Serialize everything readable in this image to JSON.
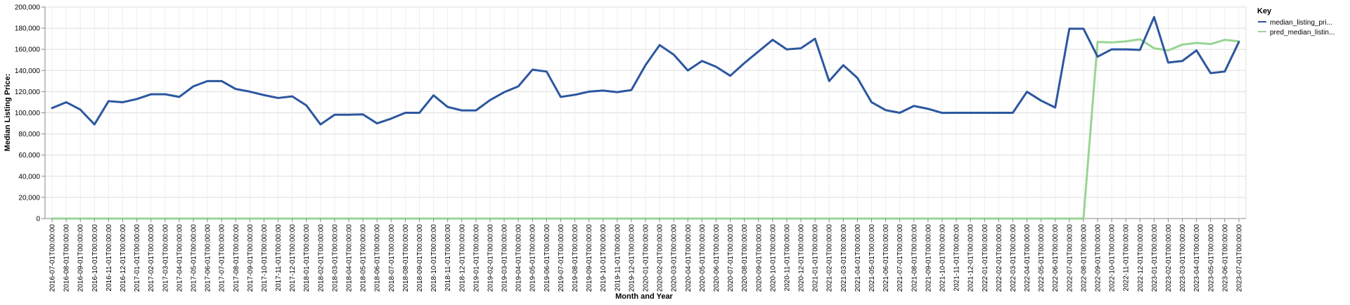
{
  "chart_data": {
    "type": "line",
    "xlabel": "Month and Year",
    "ylabel": "Median Listing Price:",
    "ylim": [
      0,
      200000
    ],
    "yticks": [
      0,
      20000,
      40000,
      60000,
      80000,
      100000,
      120000,
      140000,
      160000,
      180000,
      200000
    ],
    "ytick_labels": [
      "0",
      "20,000",
      "40,000",
      "60,000",
      "80,000",
      "100,000",
      "120,000",
      "140,000",
      "160,000",
      "180,000",
      "200,000"
    ],
    "grid": true,
    "legend_title": "Key",
    "legend_position": "right",
    "categories": [
      "2016-07-01T00:00:00",
      "2016-08-01T00:00:00",
      "2016-09-01T00:00:00",
      "2016-10-01T00:00:00",
      "2016-11-01T00:00:00",
      "2016-12-01T00:00:00",
      "2017-01-01T00:00:00",
      "2017-02-01T00:00:00",
      "2017-03-01T00:00:00",
      "2017-04-01T00:00:00",
      "2017-05-01T00:00:00",
      "2017-06-01T00:00:00",
      "2017-07-01T00:00:00",
      "2017-08-01T00:00:00",
      "2017-09-01T00:00:00",
      "2017-10-01T00:00:00",
      "2017-11-01T00:00:00",
      "2017-12-01T00:00:00",
      "2018-01-01T00:00:00",
      "2018-02-01T00:00:00",
      "2018-03-01T00:00:00",
      "2018-04-01T00:00:00",
      "2018-05-01T00:00:00",
      "2018-06-01T00:00:00",
      "2018-07-01T00:00:00",
      "2018-08-01T00:00:00",
      "2018-09-01T00:00:00",
      "2018-10-01T00:00:00",
      "2018-11-01T00:00:00",
      "2018-12-01T00:00:00",
      "2019-01-01T00:00:00",
      "2019-02-01T00:00:00",
      "2019-03-01T00:00:00",
      "2019-04-01T00:00:00",
      "2019-05-01T00:00:00",
      "2019-06-01T00:00:00",
      "2019-07-01T00:00:00",
      "2019-08-01T00:00:00",
      "2019-09-01T00:00:00",
      "2019-10-01T00:00:00",
      "2019-11-01T00:00:00",
      "2019-12-01T00:00:00",
      "2020-01-01T00:00:00",
      "2020-02-01T00:00:00",
      "2020-03-01T00:00:00",
      "2020-04-01T00:00:00",
      "2020-05-01T00:00:00",
      "2020-06-01T00:00:00",
      "2020-07-01T00:00:00",
      "2020-08-01T00:00:00",
      "2020-09-01T00:00:00",
      "2020-10-01T00:00:00",
      "2020-11-01T00:00:00",
      "2020-12-01T00:00:00",
      "2021-01-01T00:00:00",
      "2021-02-01T00:00:00",
      "2021-03-01T00:00:00",
      "2021-04-01T00:00:00",
      "2021-05-01T00:00:00",
      "2021-06-01T00:00:00",
      "2021-07-01T00:00:00",
      "2021-08-01T00:00:00",
      "2021-09-01T00:00:00",
      "2021-10-01T00:00:00",
      "2021-11-01T00:00:00",
      "2021-12-01T00:00:00",
      "2022-01-01T00:00:00",
      "2022-02-01T00:00:00",
      "2022-03-01T00:00:00",
      "2022-04-01T00:00:00",
      "2022-05-01T00:00:00",
      "2022-06-01T00:00:00",
      "2022-07-01T00:00:00",
      "2022-08-01T00:00:00",
      "2022-09-01T00:00:00",
      "2022-10-01T00:00:00",
      "2022-11-01T00:00:00",
      "2022-12-01T00:00:00",
      "2023-01-01T00:00:00",
      "2023-02-01T00:00:00",
      "2023-03-01T00:00:00",
      "2023-04-01T00:00:00",
      "2023-05-01T00:00:00",
      "2023-06-01T00:00:00",
      "2023-07-01T00:00:00"
    ],
    "series": [
      {
        "name": "median_listing_pri...",
        "color": "#2c579f",
        "values": [
          104500,
          110000,
          103000,
          89000,
          111000,
          110000,
          113000,
          117500,
          117500,
          115000,
          125000,
          130000,
          130000,
          122500,
          120000,
          116750,
          114000,
          115500,
          107000,
          89000,
          98200,
          98200,
          98500,
          90000,
          94500,
          100000,
          100000,
          116500,
          105500,
          102250,
          102250,
          112000,
          119500,
          125000,
          140750,
          139000,
          115000,
          117000,
          120000,
          121000,
          119500,
          121500,
          145000,
          164000,
          155000,
          140000,
          149000,
          143500,
          135000,
          147000,
          158000,
          169000,
          160000,
          161000,
          170000,
          130000,
          145000,
          133000,
          110000,
          102500,
          100000,
          106500,
          103750,
          99900,
          100000,
          100000,
          100000,
          100000,
          100000,
          119900,
          111500,
          105000,
          179500,
          179500,
          153000,
          160000,
          160000,
          159500,
          190500,
          147500,
          149000,
          159000,
          137500,
          139000,
          167000
        ]
      },
      {
        "name": "pred_median_listin...",
        "color": "#98d594",
        "values": [
          0,
          0,
          0,
          0,
          0,
          0,
          0,
          0,
          0,
          0,
          0,
          0,
          0,
          0,
          0,
          0,
          0,
          0,
          0,
          0,
          0,
          0,
          0,
          0,
          0,
          0,
          0,
          0,
          0,
          0,
          0,
          0,
          0,
          0,
          0,
          0,
          0,
          0,
          0,
          0,
          0,
          0,
          0,
          0,
          0,
          0,
          0,
          0,
          0,
          0,
          0,
          0,
          0,
          0,
          0,
          0,
          0,
          0,
          0,
          0,
          0,
          0,
          0,
          0,
          0,
          0,
          0,
          0,
          0,
          0,
          0,
          0,
          0,
          0,
          167000,
          166500,
          167500,
          169500,
          161000,
          159000,
          164500,
          166000,
          165000,
          169000,
          167500
        ]
      }
    ]
  }
}
